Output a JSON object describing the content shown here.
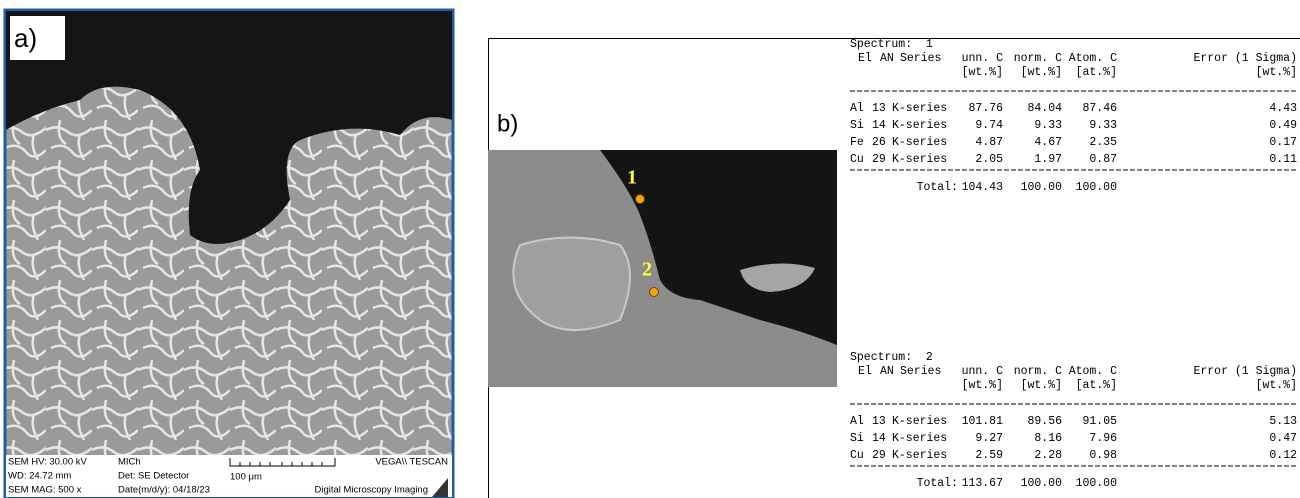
{
  "panel_a": {
    "label": "a)",
    "info": {
      "hv": "SEM HV: 30.00 kV",
      "wd": "WD: 24.72 mm",
      "mag": "SEM MAG: 500 x",
      "site": "MICh",
      "detector": "Det: SE Detector",
      "date": "Date(m/d/y): 04/18/23",
      "scale": "100 μm",
      "brand": "VEGA\\\\ TESCAN",
      "footer": "Digital Microscopy Imaging"
    }
  },
  "panel_b": {
    "label": "b)",
    "points": [
      "1",
      "2"
    ],
    "spectra": [
      {
        "title": "Spectrum:  1",
        "header": [
          "El",
          "AN",
          "Series",
          "unn. C",
          "norm. C",
          "Atom. C",
          "Error (1 Sigma)"
        ],
        "units": [
          "[wt.%]",
          "[wt.%]",
          "[at.%]",
          "[wt.%]"
        ],
        "rows": [
          [
            "Al",
            "13",
            "K-series",
            "87.76",
            "84.04",
            "87.46",
            "4.43"
          ],
          [
            "Si",
            "14",
            "K-series",
            "9.74",
            "9.33",
            "9.33",
            "0.49"
          ],
          [
            "Fe",
            "26",
            "K-series",
            "4.87",
            "4.67",
            "2.35",
            "0.17"
          ],
          [
            "Cu",
            "29",
            "K-series",
            "2.05",
            "1.97",
            "0.87",
            "0.11"
          ]
        ],
        "total": [
          "Total:",
          "104.43",
          "100.00",
          "100.00"
        ]
      },
      {
        "title": "Spectrum:  2",
        "header": [
          "El",
          "AN",
          "Series",
          "unn. C",
          "norm. C",
          "Atom. C",
          "Error (1 Sigma)"
        ],
        "units": [
          "[wt.%]",
          "[wt.%]",
          "[at.%]",
          "[wt.%]"
        ],
        "rows": [
          [
            "Al",
            "13",
            "K-series",
            "101.81",
            "89.56",
            "91.05",
            "5.13"
          ],
          [
            "Si",
            "14",
            "K-series",
            "9.27",
            "8.16",
            "7.96",
            "0.47"
          ],
          [
            "Cu",
            "29",
            "K-series",
            "2.59",
            "2.28",
            "0.98",
            "0.12"
          ]
        ],
        "total": [
          "Total:",
          "113.67",
          "100.00",
          "100.00"
        ]
      }
    ]
  }
}
